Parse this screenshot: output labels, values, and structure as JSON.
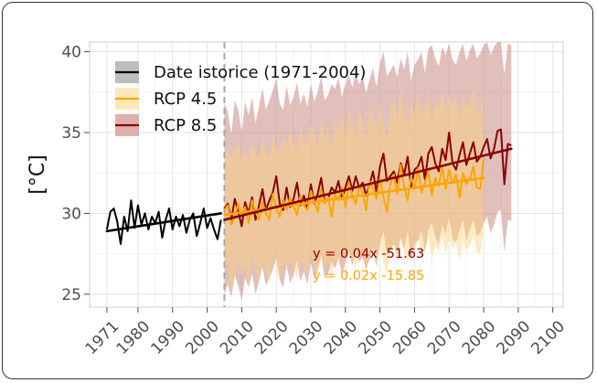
{
  "chart_data": {
    "type": "line",
    "title": "",
    "xlabel": "",
    "ylabel": "[°C]",
    "xlim": [
      1966,
      2103
    ],
    "ylim": [
      24.2,
      40.6
    ],
    "xticks": [
      1971,
      1980,
      1990,
      2000,
      2010,
      2020,
      2030,
      2040,
      2050,
      2060,
      2070,
      2080,
      2090,
      2100
    ],
    "yticks": [
      25,
      30,
      35,
      40
    ],
    "grid": true,
    "vline_x": 2005,
    "legend": {
      "position": "top-left",
      "entries": [
        {
          "key": "historic",
          "label": "Date istorice (1971-2004)",
          "color": "#000000",
          "fill": "#bdbdbd"
        },
        {
          "key": "rcp45",
          "label": "RCP 4.5",
          "color": "#ffa500",
          "fill": "#ffe4b3"
        },
        {
          "key": "rcp85",
          "label": "RCP 8.5",
          "color": "#8b0000",
          "fill": "#d9a9a0"
        }
      ]
    },
    "annotations": [
      {
        "text": "y = 0.04x -51.63",
        "color": "#8b0000"
      },
      {
        "text": "y = 0.02x -15.85",
        "color": "#ffa500"
      }
    ],
    "series": [
      {
        "name": "Date istorice (1971-2004)",
        "key": "historic",
        "color": "#000000",
        "x": [
          1971,
          1972,
          1973,
          1974,
          1975,
          1976,
          1977,
          1978,
          1979,
          1980,
          1981,
          1982,
          1983,
          1984,
          1985,
          1986,
          1987,
          1988,
          1989,
          1990,
          1991,
          1992,
          1993,
          1994,
          1995,
          1996,
          1997,
          1998,
          1999,
          2000,
          2001,
          2002,
          2003,
          2004
        ],
        "values": [
          29.0,
          30.1,
          30.3,
          29.5,
          28.1,
          29.8,
          28.9,
          30.8,
          29.1,
          30.5,
          29.3,
          30.0,
          29.0,
          29.8,
          29.4,
          30.1,
          28.5,
          29.6,
          30.3,
          29.0,
          29.8,
          29.2,
          29.9,
          28.8,
          29.6,
          30.0,
          28.6,
          29.4,
          30.3,
          29.1,
          29.7,
          29.0,
          28.4,
          29.6
        ],
        "trend": [
          28.9,
          30.0
        ]
      },
      {
        "name": "RCP 4.5",
        "key": "rcp45",
        "color": "#ffa500",
        "x_start": 2005,
        "values": [
          30.2,
          30.5,
          29.3,
          29.8,
          30.6,
          29.9,
          30.4,
          29.4,
          30.8,
          30.1,
          29.6,
          30.7,
          30.0,
          29.6,
          31.2,
          30.3,
          29.8,
          30.9,
          30.2,
          31.0,
          30.4,
          29.9,
          31.1,
          30.5,
          30.2,
          31.4,
          30.7,
          30.1,
          31.5,
          30.6,
          31.0,
          29.8,
          31.2,
          30.8,
          31.6,
          30.4,
          31.9,
          31.1,
          30.6,
          31.7,
          31.3,
          30.2,
          32.0,
          31.5,
          30.9,
          32.2,
          31.0,
          30.1,
          31.8,
          32.4,
          31.2,
          33.0,
          31.6,
          30.8,
          32.3,
          31.5,
          32.8,
          31.3,
          31.9,
          32.6,
          31.1,
          32.2,
          31.7,
          32.9,
          31.5,
          32.7,
          31.9,
          32.4,
          31.0,
          32.5,
          31.8,
          32.1,
          32.9,
          31.6,
          31.5,
          33.4
        ],
        "band_upper": [
          34.0,
          33.8,
          33.5,
          33.9,
          34.2,
          33.6,
          34.0,
          33.3,
          34.4,
          33.8,
          33.5,
          34.6,
          33.9,
          33.4,
          35.0,
          34.1,
          33.7,
          34.8,
          34.1,
          35.2,
          34.3,
          33.9,
          35.3,
          34.6,
          34.2,
          35.6,
          34.8,
          34.1,
          35.9,
          34.7,
          35.3,
          33.9,
          35.6,
          35.0,
          36.2,
          34.7,
          36.4,
          35.5,
          35.0,
          36.3,
          35.8,
          34.6,
          36.6,
          36.0,
          35.3,
          36.8,
          35.6,
          34.6,
          36.5,
          37.0,
          35.9,
          37.7,
          36.2,
          35.4,
          37.0,
          36.2,
          37.5,
          36.0,
          36.6,
          37.3,
          35.8,
          36.9,
          36.4,
          37.6,
          36.2,
          37.4,
          36.6,
          37.2,
          35.8,
          37.3,
          36.5,
          36.9,
          37.7,
          36.4,
          36.3,
          37.9
        ],
        "band_lower": [
          26.4,
          27.2,
          25.1,
          26.0,
          27.0,
          26.2,
          26.8,
          25.5,
          27.3,
          26.4,
          25.8,
          27.0,
          26.3,
          25.8,
          27.5,
          26.5,
          26.0,
          27.1,
          26.4,
          27.0,
          26.5,
          26.0,
          27.1,
          26.6,
          26.2,
          27.4,
          26.7,
          26.1,
          27.3,
          26.6,
          27.0,
          25.9,
          27.2,
          26.8,
          27.5,
          26.5,
          27.7,
          27.0,
          26.6,
          27.5,
          27.2,
          26.3,
          27.8,
          27.3,
          26.8,
          28.0,
          27.0,
          26.3,
          27.6,
          28.1,
          27.1,
          28.5,
          27.5,
          26.9,
          28.0,
          27.4,
          28.5,
          27.3,
          27.8,
          28.4,
          27.2,
          28.0,
          27.6,
          28.6,
          27.4,
          28.4,
          27.8,
          28.2,
          27.1,
          28.3,
          27.7,
          28.0,
          28.6,
          27.6,
          27.5,
          29.0
        ],
        "trend": [
          29.9,
          32.2
        ]
      },
      {
        "name": "RCP 8.5",
        "key": "rcp85",
        "color": "#8b0000",
        "x_start": 2005,
        "values": [
          30.3,
          30.6,
          29.6,
          30.9,
          30.1,
          29.2,
          30.7,
          30.0,
          31.0,
          29.6,
          30.5,
          31.5,
          30.2,
          30.8,
          31.3,
          32.3,
          30.6,
          30.2,
          31.6,
          30.4,
          30.9,
          31.9,
          30.5,
          31.1,
          30.3,
          31.8,
          30.6,
          31.2,
          32.2,
          30.7,
          30.9,
          31.6,
          31.3,
          32.0,
          30.9,
          31.6,
          32.3,
          31.4,
          32.3,
          31.6,
          31.9,
          31.1,
          31.8,
          32.6,
          31.3,
          32.9,
          33.7,
          32.0,
          32.3,
          32.6,
          31.9,
          33.1,
          32.4,
          33.5,
          31.6,
          32.7,
          32.9,
          33.5,
          32.1,
          33.7,
          34.1,
          33.1,
          32.6,
          34.0,
          33.3,
          35.0,
          33.1,
          32.7,
          33.6,
          34.4,
          33.0,
          33.7,
          34.4,
          33.2,
          33.5,
          34.1,
          34.6,
          33.4,
          34.0,
          35.1,
          35.2,
          31.8,
          34.3,
          34.2
        ],
        "band_upper": [
          36.8,
          36.3,
          34.9,
          37.0,
          36.4,
          35.0,
          36.9,
          36.1,
          37.2,
          35.6,
          36.6,
          37.8,
          36.4,
          37.0,
          37.6,
          38.4,
          36.8,
          36.4,
          37.9,
          36.7,
          37.2,
          38.1,
          36.8,
          37.4,
          36.6,
          38.0,
          36.9,
          37.5,
          38.5,
          37.0,
          37.3,
          38.0,
          37.7,
          38.4,
          37.2,
          38.0,
          38.6,
          37.8,
          38.7,
          38.0,
          38.4,
          37.5,
          38.3,
          39.0,
          37.8,
          39.3,
          40.0,
          38.5,
          38.8,
          39.2,
          38.4,
          39.6,
          38.9,
          40.0,
          38.2,
          39.2,
          39.5,
          40.0,
          38.7,
          40.2,
          40.4,
          39.6,
          39.1,
          40.3,
          39.8,
          40.5,
          39.5,
          39.2,
          40.0,
          40.5,
          39.4,
          40.1,
          40.5,
          39.6,
          39.9,
          40.4,
          40.6,
          39.8,
          40.3,
          40.6,
          40.6,
          38.6,
          40.5,
          40.4
        ],
        "band_lower": [
          25.0,
          25.6,
          24.8,
          26.2,
          25.5,
          24.6,
          26.0,
          25.4,
          26.3,
          25.0,
          25.8,
          26.7,
          25.5,
          26.0,
          26.5,
          27.3,
          25.9,
          25.4,
          26.8,
          25.7,
          26.2,
          27.1,
          25.8,
          26.4,
          25.6,
          27.0,
          25.9,
          26.5,
          27.4,
          26.0,
          26.3,
          27.0,
          26.6,
          27.3,
          26.2,
          27.0,
          27.6,
          26.8,
          27.7,
          27.0,
          27.3,
          26.5,
          27.2,
          27.9,
          26.7,
          28.2,
          28.9,
          27.4,
          27.7,
          28.1,
          27.4,
          28.5,
          27.8,
          28.9,
          27.1,
          28.1,
          28.3,
          28.9,
          27.6,
          29.0,
          29.4,
          28.5,
          28.1,
          29.3,
          28.7,
          29.8,
          28.4,
          28.2,
          28.9,
          29.6,
          28.3,
          29.0,
          29.6,
          28.6,
          28.8,
          29.4,
          29.8,
          28.8,
          29.3,
          30.1,
          30.2,
          27.6,
          29.6,
          29.5
        ],
        "trend": [
          29.6,
          34.0
        ]
      }
    ]
  }
}
